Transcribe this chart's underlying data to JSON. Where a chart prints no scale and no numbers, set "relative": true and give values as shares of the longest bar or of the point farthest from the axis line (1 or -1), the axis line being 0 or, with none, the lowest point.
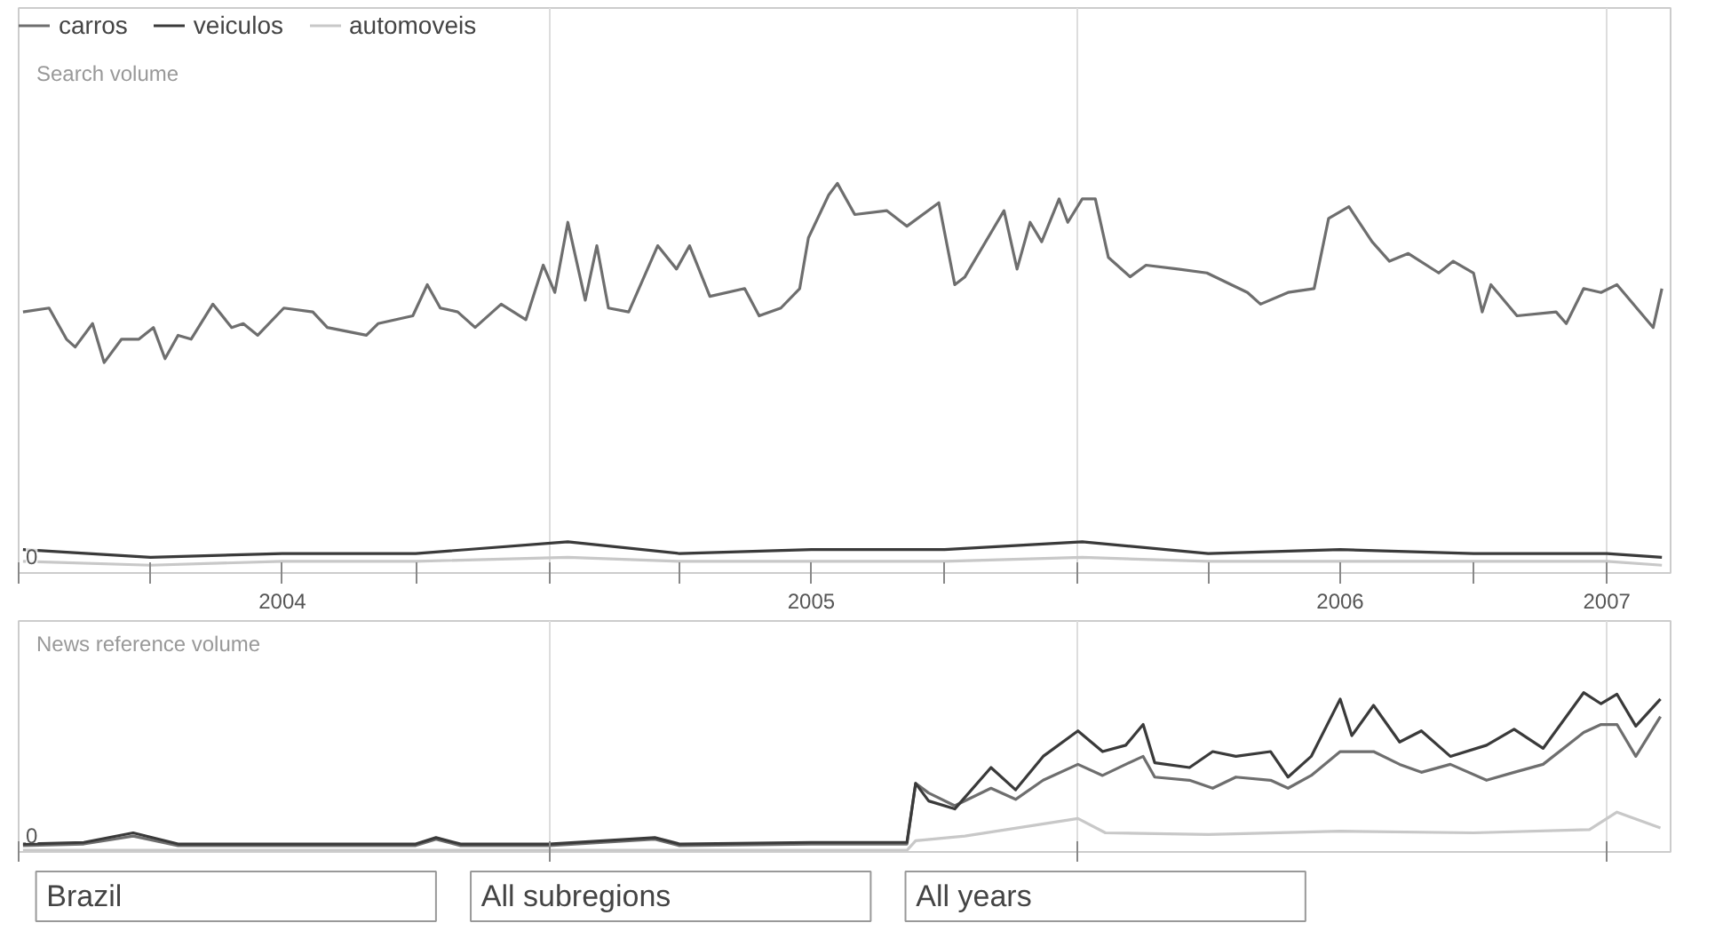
{
  "chart_data": [
    {
      "type": "line",
      "title": "Search volume",
      "relative": true,
      "legend": "top left",
      "grid": "x",
      "tick_labels": "x",
      "xlim": [
        "2004-01-01",
        "2007-02-14"
      ],
      "xticks": [
        {
          "value": "2004-01-01",
          "label": null
        },
        {
          "value": "2004-04-01",
          "label": null
        },
        {
          "value": "2004-07-01",
          "label": "2004"
        },
        {
          "value": "2004-10-01",
          "label": null
        },
        {
          "value": "2005-01-01",
          "label": null
        },
        {
          "value": "2005-04-01",
          "label": null
        },
        {
          "value": "2005-07-01",
          "label": "2005"
        },
        {
          "value": "2005-10-01",
          "label": null
        },
        {
          "value": "2006-01-01",
          "label": null
        },
        {
          "value": "2006-04-01",
          "label": null
        },
        {
          "value": "2006-07-01",
          "label": "2006"
        },
        {
          "value": "2006-10-01",
          "label": null
        },
        {
          "value": "2007-01-01",
          "label": "2007"
        }
      ],
      "annotations": [
        "0"
      ],
      "series": [
        {
          "name": "carros",
          "color": "#6e6e6e",
          "x": [
            "2004-01-04",
            "2004-01-22",
            "2004-02-03",
            "2004-02-09",
            "2004-02-21",
            "2004-02-29",
            "2004-03-12",
            "2004-03-24",
            "2004-04-03",
            "2004-04-11",
            "2004-04-20",
            "2004-04-29",
            "2004-05-14",
            "2004-05-27",
            "2004-06-04",
            "2004-06-14",
            "2004-07-02",
            "2004-07-22",
            "2004-08-01",
            "2004-08-28",
            "2004-09-05",
            "2004-09-29",
            "2004-10-09",
            "2004-10-18",
            "2004-10-30",
            "2004-11-11",
            "2004-11-29",
            "2004-12-16",
            "2004-12-28",
            "2005-01-05",
            "2005-01-14",
            "2005-01-26",
            "2005-02-03",
            "2005-02-11",
            "2005-02-25",
            "2005-03-17",
            "2005-03-30",
            "2005-04-08",
            "2005-04-22",
            "2005-05-16",
            "2005-05-26",
            "2005-06-10",
            "2005-06-23",
            "2005-06-29",
            "2005-07-13",
            "2005-07-19",
            "2005-07-31",
            "2005-08-22",
            "2005-09-05",
            "2005-09-27",
            "2005-10-08",
            "2005-10-15",
            "2005-11-11",
            "2005-11-20",
            "2005-11-29",
            "2005-12-07",
            "2005-12-19",
            "2005-12-25",
            "2006-01-04",
            "2006-01-13",
            "2006-01-22",
            "2006-02-06",
            "2006-02-17",
            "2006-03-11",
            "2006-03-31",
            "2006-04-28",
            "2006-05-07",
            "2006-05-26",
            "2006-06-13",
            "2006-06-23",
            "2006-07-07",
            "2006-07-23",
            "2006-08-04",
            "2006-08-17",
            "2006-09-07",
            "2006-09-17",
            "2006-10-01",
            "2006-10-07",
            "2006-10-13",
            "2006-10-31",
            "2006-11-27",
            "2006-12-04",
            "2006-12-16",
            "2006-12-28",
            "2007-01-08",
            "2007-02-02",
            "2007-02-08"
          ],
          "values": [
            0.67,
            0.68,
            0.6,
            0.58,
            0.64,
            0.54,
            0.6,
            0.6,
            0.63,
            0.55,
            0.61,
            0.6,
            0.69,
            0.63,
            0.64,
            0.61,
            0.68,
            0.67,
            0.63,
            0.61,
            0.64,
            0.66,
            0.74,
            0.68,
            0.67,
            0.63,
            0.69,
            0.65,
            0.79,
            0.72,
            0.9,
            0.7,
            0.84,
            0.68,
            0.67,
            0.84,
            0.78,
            0.84,
            0.71,
            0.73,
            0.66,
            0.68,
            0.73,
            0.86,
            0.97,
            1.0,
            0.92,
            0.93,
            0.89,
            0.95,
            0.74,
            0.76,
            0.93,
            0.78,
            0.9,
            0.85,
            0.96,
            0.9,
            0.96,
            0.96,
            0.81,
            0.76,
            0.79,
            0.78,
            0.77,
            0.72,
            0.69,
            0.72,
            0.73,
            0.91,
            0.94,
            0.85,
            0.8,
            0.82,
            0.77,
            0.8,
            0.77,
            0.67,
            0.74,
            0.66,
            0.67,
            0.64,
            0.73,
            0.72,
            0.74,
            0.63,
            0.73
          ]
        },
        {
          "name": "veiculos",
          "color": "#3a3a3a",
          "x": [
            "2004-01-04",
            "2004-04-01",
            "2004-07-01",
            "2004-10-01",
            "2005-01-14",
            "2005-04-01",
            "2005-07-01",
            "2005-10-01",
            "2006-01-04",
            "2006-04-01",
            "2006-07-01",
            "2006-10-01",
            "2007-01-01",
            "2007-02-08"
          ],
          "values": [
            0.06,
            0.04,
            0.05,
            0.05,
            0.08,
            0.05,
            0.06,
            0.06,
            0.08,
            0.05,
            0.06,
            0.05,
            0.05,
            0.04
          ]
        },
        {
          "name": "automoveis",
          "color": "#c8c8c8",
          "x": [
            "2004-01-04",
            "2004-04-01",
            "2004-07-01",
            "2004-10-01",
            "2005-01-14",
            "2005-04-01",
            "2005-07-01",
            "2005-10-01",
            "2006-01-04",
            "2006-04-01",
            "2006-07-01",
            "2006-10-01",
            "2007-01-01",
            "2007-02-08"
          ],
          "values": [
            0.03,
            0.02,
            0.03,
            0.03,
            0.04,
            0.03,
            0.03,
            0.03,
            0.04,
            0.03,
            0.03,
            0.03,
            0.03,
            0.02
          ]
        }
      ]
    },
    {
      "type": "line",
      "title": "News reference volume",
      "relative": true,
      "grid": "x",
      "tick_labels": false,
      "xlim": [
        "2004-01-01",
        "2007-02-14"
      ],
      "xticks": [
        {
          "value": "2004-01-01",
          "label": null
        },
        {
          "value": "2005-01-01",
          "label": null
        },
        {
          "value": "2006-01-01",
          "label": null
        },
        {
          "value": "2007-01-01",
          "label": null
        }
      ],
      "annotations": [
        "0",
        "Brazil",
        "All subregions",
        "All years"
      ],
      "series": [
        {
          "color": "#6e6e6e",
          "x": [
            "2004-01-04",
            "2004-02-15",
            "2004-03-20",
            "2004-04-20",
            "2004-07-01",
            "2004-10-01",
            "2004-10-15",
            "2004-11-01",
            "2005-01-01",
            "2005-03-15",
            "2005-04-01",
            "2005-07-01",
            "2005-09-05",
            "2005-09-11",
            "2005-09-20",
            "2005-10-08",
            "2005-11-02",
            "2005-11-19",
            "2005-12-08",
            "2006-01-01",
            "2006-01-18",
            "2006-02-03",
            "2006-02-15",
            "2006-02-23",
            "2006-03-19",
            "2006-04-04",
            "2006-04-20",
            "2006-05-14",
            "2006-05-26",
            "2006-06-11",
            "2006-07-01",
            "2006-07-09",
            "2006-07-24",
            "2006-08-11",
            "2006-08-26",
            "2006-09-15",
            "2006-10-10",
            "2006-10-29",
            "2006-11-18",
            "2006-12-16",
            "2006-12-28",
            "2007-01-08",
            "2007-01-21",
            "2007-02-07"
          ],
          "values": [
            0.04,
            0.05,
            0.1,
            0.04,
            0.04,
            0.04,
            0.08,
            0.04,
            0.04,
            0.08,
            0.04,
            0.05,
            0.05,
            0.43,
            0.37,
            0.29,
            0.4,
            0.33,
            0.45,
            0.55,
            0.48,
            0.55,
            0.6,
            0.47,
            0.45,
            0.4,
            0.47,
            0.45,
            0.4,
            0.48,
            0.63,
            0.63,
            0.63,
            0.55,
            0.5,
            0.55,
            0.45,
            0.5,
            0.55,
            0.75,
            0.8,
            0.8,
            0.6,
            0.85
          ]
        },
        {
          "color": "#3a3a3a",
          "x": [
            "2004-01-04",
            "2004-02-15",
            "2004-03-20",
            "2004-04-20",
            "2004-07-01",
            "2004-10-01",
            "2004-10-15",
            "2004-11-01",
            "2005-01-01",
            "2005-03-15",
            "2005-04-01",
            "2005-07-01",
            "2005-09-05",
            "2005-09-11",
            "2005-09-20",
            "2005-10-08",
            "2005-11-02",
            "2005-11-19",
            "2005-12-08",
            "2006-01-01",
            "2006-01-18",
            "2006-02-03",
            "2006-02-15",
            "2006-02-23",
            "2006-03-19",
            "2006-04-04",
            "2006-04-20",
            "2006-05-14",
            "2006-05-26",
            "2006-06-11",
            "2006-07-01",
            "2006-07-09",
            "2006-07-24",
            "2006-08-11",
            "2006-08-26",
            "2006-09-15",
            "2006-10-10",
            "2006-10-29",
            "2006-11-18",
            "2006-12-16",
            "2006-12-28",
            "2007-01-08",
            "2007-01-21",
            "2007-02-07"
          ],
          "values": [
            0.05,
            0.06,
            0.12,
            0.05,
            0.05,
            0.05,
            0.09,
            0.05,
            0.05,
            0.09,
            0.05,
            0.06,
            0.06,
            0.43,
            0.32,
            0.27,
            0.53,
            0.39,
            0.6,
            0.76,
            0.63,
            0.67,
            0.8,
            0.56,
            0.53,
            0.63,
            0.6,
            0.63,
            0.47,
            0.6,
            0.96,
            0.73,
            0.92,
            0.69,
            0.76,
            0.6,
            0.67,
            0.77,
            0.65,
            1.0,
            0.93,
            0.99,
            0.79,
            0.96
          ]
        },
        {
          "color": "#c8c8c8",
          "x": [
            "2004-01-04",
            "2004-07-01",
            "2005-01-01",
            "2005-09-05",
            "2005-09-11",
            "2005-10-15",
            "2006-01-01",
            "2006-01-20",
            "2006-04-01",
            "2006-07-01",
            "2006-10-01",
            "2006-12-20",
            "2007-01-08",
            "2007-02-07"
          ],
          "values": [
            0.01,
            0.01,
            0.01,
            0.01,
            0.07,
            0.1,
            0.21,
            0.12,
            0.11,
            0.13,
            0.12,
            0.14,
            0.25,
            0.15
          ]
        }
      ]
    }
  ]
}
